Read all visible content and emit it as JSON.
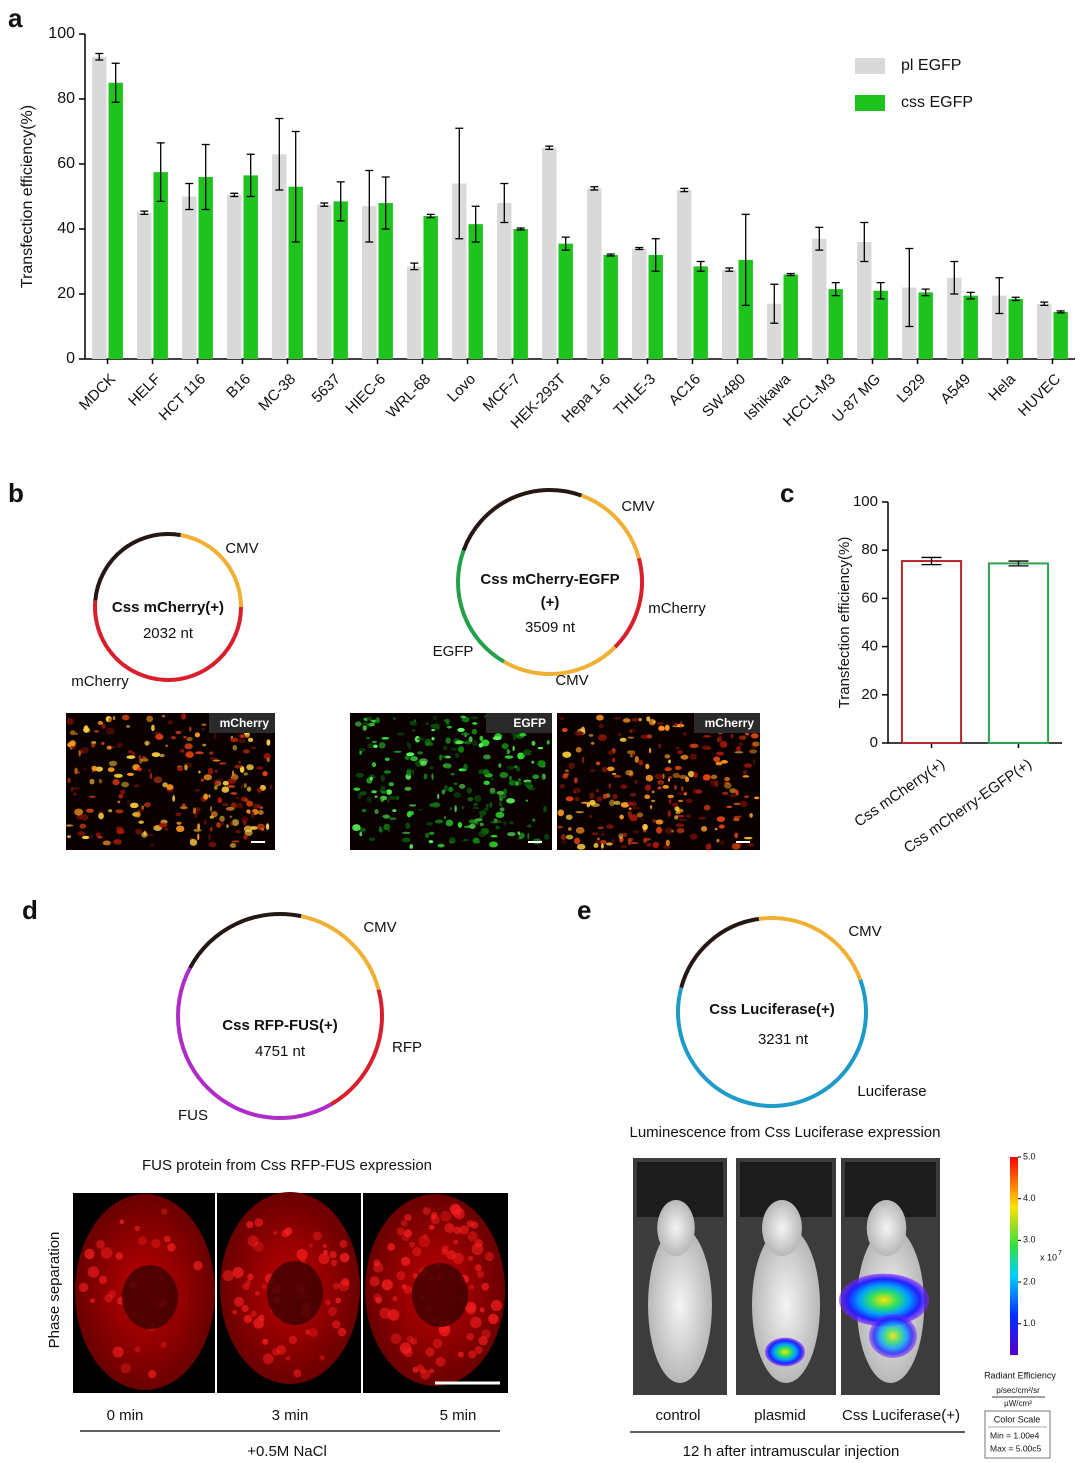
{
  "chart_data": [
    {
      "type": "bar",
      "panel": "a",
      "y_label": "Transfection efficiency(%)",
      "categories": [
        "MDCK",
        "HELF",
        "HCT 116",
        "B16",
        "MC-38",
        "5637",
        "HIEC-6",
        "WRL-68",
        "Lovo",
        "MCF-7",
        "HEK-293T",
        "Hepa 1-6",
        "THLE-3",
        "AC16",
        "SW-480",
        "Ishikawa",
        "HCCL-M3",
        "U-87 MG",
        "L929",
        "A549",
        "Hela",
        "HUVEC"
      ],
      "series": [
        {
          "name": "pl EGFP",
          "color": "#d9d9d9",
          "values": [
            93,
            45,
            50,
            50.5,
            63,
            47.5,
            47,
            28.5,
            54,
            48,
            65,
            52.5,
            34,
            52,
            27.5,
            17,
            37,
            36,
            22,
            25,
            19.5,
            17
          ],
          "errors": [
            1,
            0.5,
            4,
            0.5,
            11,
            0.5,
            11,
            1,
            17,
            6,
            0.5,
            0.5,
            0.3,
            0.5,
            0.5,
            6,
            3.5,
            6,
            12,
            5,
            5.5,
            0.5
          ]
        },
        {
          "name": "css EGFP",
          "color": "#1ec31e",
          "values": [
            85,
            57.5,
            56,
            56.5,
            53,
            48.5,
            48,
            44,
            41.5,
            40,
            35.5,
            32,
            32,
            28.5,
            30.5,
            26,
            21.5,
            21,
            20.5,
            19.5,
            18.5,
            14.5
          ],
          "errors": [
            6,
            9,
            10,
            6.5,
            17,
            6,
            8,
            0.5,
            5.5,
            0.3,
            2,
            0.3,
            5,
            1.5,
            14,
            0.3,
            2,
            2.5,
            1,
            1,
            0.5,
            0.3
          ]
        }
      ],
      "ylim": [
        0,
        100
      ],
      "yticks": [
        0,
        20,
        40,
        60,
        80,
        100
      ],
      "legend": "upper right"
    },
    {
      "type": "bar",
      "panel": "c",
      "style": "outline",
      "y_label": "Transfection efficiency(%)",
      "categories": [
        "Css mCherry(+)",
        "Css mCherry-EGFP(+)"
      ],
      "values": [
        75.5,
        74.5
      ],
      "errors": [
        1.5,
        1
      ],
      "colors": [
        "#b5262e",
        "#2ca24e"
      ],
      "ylim": [
        0,
        100
      ],
      "yticks": [
        0,
        20,
        40,
        60,
        80,
        100
      ]
    }
  ],
  "panel_b": {
    "panel": "b",
    "plasmids": [
      {
        "name": [
          "Css mCherry(+)"
        ],
        "length": "2032 nt",
        "labels": [
          "CMV",
          "mCherry"
        ],
        "images": [
          "mCherry"
        ]
      },
      {
        "name": [
          "Css mCherry-EGFP",
          "(+)"
        ],
        "length": "3509 nt",
        "labels": [
          "CMV",
          "mCherry",
          "CMV",
          "EGFP"
        ],
        "images": [
          "EGFP",
          "mCherry"
        ]
      }
    ]
  },
  "panel_d": {
    "panel": "d",
    "name": "Css RFP-FUS(+)",
    "length": "4751 nt",
    "labels": [
      "CMV",
      "RFP",
      "FUS"
    ],
    "caption": "FUS protein from Css RFP-FUS expression",
    "y_label": "Phase separation",
    "times": [
      "0 min",
      "3 min",
      "5 min"
    ],
    "condition": "+0.5M NaCl"
  },
  "panel_e": {
    "panel": "e",
    "name": "Css Luciferase(+)",
    "length": "3231 nt",
    "labels": [
      "CMV",
      "Luciferase"
    ],
    "caption": "Luminescence from Css Luciferase expression",
    "groups": [
      "control",
      "plasmid",
      "Css Luciferase(+)"
    ],
    "footer": "12 h after intramuscular injection",
    "color_scale": {
      "ticks": [
        {
          "value": 5,
          "label": "5.0"
        },
        {
          "value": 4,
          "label": "4.0"
        },
        {
          "value": 3,
          "label": "3.0"
        },
        {
          "value": 2,
          "label": "2.0"
        },
        {
          "value": 1,
          "label": "1.0"
        }
      ],
      "lim": [
        0.25,
        5
      ],
      "multiplier": "x 10",
      "exponent": "7",
      "title": "Radiant Efficiency",
      "unit_top": "p/sec/cm²/sr",
      "unit_bottom": "µW/cm²",
      "box_title": "Color Scale",
      "min": "Min = 1.00e4",
      "max": "Max = 5.00c5"
    }
  }
}
